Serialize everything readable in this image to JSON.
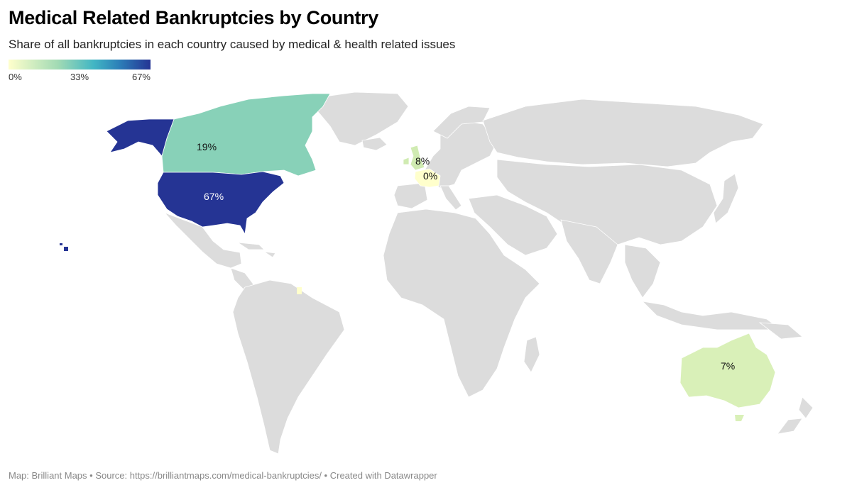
{
  "header": {
    "title": "Medical Related Bankruptcies by Country",
    "subtitle": "Share of all bankruptcies in each country caused by medical & health related issues"
  },
  "legend": {
    "min_label": "0%",
    "mid_label": "33%",
    "max_label": "67%",
    "low_color": "#ffffcc",
    "high_color": "#253494"
  },
  "map": {
    "no_data_color": "#dcdcdc",
    "countries": [
      {
        "name": "United States",
        "value": 67,
        "label": "67%",
        "color": "#253494"
      },
      {
        "name": "Canada",
        "value": 19,
        "label": "19%",
        "color": "#88d1b8"
      },
      {
        "name": "United Kingdom",
        "value": 8,
        "label": "8%",
        "color": "#d0ebb2"
      },
      {
        "name": "France",
        "value": 0,
        "label": "0%",
        "color": "#ffffcc"
      },
      {
        "name": "Australia",
        "value": 7,
        "label": "7%",
        "color": "#d9f0b8"
      }
    ]
  },
  "footer": {
    "source": "Map: Brilliant Maps • Source: https://brilliantmaps.com/medical-bankruptcies/ • Created with Datawrapper"
  }
}
